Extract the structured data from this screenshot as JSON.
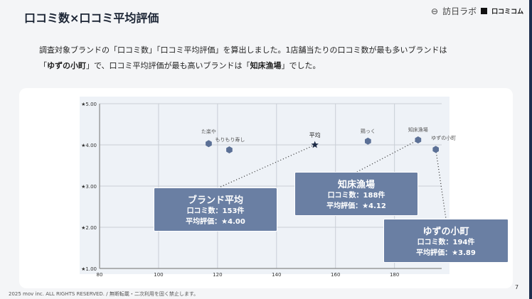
{
  "header": {
    "title": "口コミ数×口コミ平均評価",
    "logo_text": "訪日ラボ",
    "logo2_text": "口コミコム"
  },
  "description": {
    "line1": "調査対象ブランドの「口コミ数」「口コミ平均評価」を算出しました。1店舗当たりの口コミ数が最も多いブランドは",
    "line2_pre": "「",
    "line2_b1": "ゆずの小町",
    "line2_mid": "」で、口コミ平均評価が最も高いブランドは「",
    "line2_b2": "知床漁場",
    "line2_post": "」でした。"
  },
  "chart_data": {
    "type": "scatter",
    "xlim": [
      80,
      196
    ],
    "ylim": [
      1,
      5
    ],
    "grid": true,
    "x_ticks": [
      "80",
      "100",
      "120",
      "140",
      "160",
      "180"
    ],
    "x_tick_values": [
      80,
      100,
      120,
      140,
      160,
      180
    ],
    "y_ticks": [
      "★1.00",
      "★2.00",
      "★3.00",
      "★4.00",
      "★5.00"
    ],
    "y_tick_values": [
      1,
      2,
      3,
      4,
      5
    ],
    "points": [
      {
        "label": "た楽や",
        "x": 117,
        "y": 4.03,
        "marker": "hexagon"
      },
      {
        "label": "もりもり寿し",
        "x": 124,
        "y": 3.88,
        "marker": "hexagon"
      },
      {
        "label": "平均",
        "x": 153,
        "y": 4.0,
        "marker": "star"
      },
      {
        "label": "鶏っく",
        "x": 171,
        "y": 4.09,
        "marker": "hexagon"
      },
      {
        "label": "知床漁場",
        "x": 188,
        "y": 4.12,
        "marker": "hexagon"
      },
      {
        "label": "ゆずの小町",
        "x": 194,
        "y": 3.89,
        "marker": "hexagon"
      }
    ],
    "colors": {
      "marker": "#5b7096",
      "star": "#1c2a45",
      "callout": "#6a7fa3"
    }
  },
  "callouts": [
    {
      "title": "ブランド平均",
      "count": "口コミ数：153件",
      "rating": "平均評価：★4.00"
    },
    {
      "title": "知床漁場",
      "count": "口コミ数：188件",
      "rating": "平均評価：★4.12"
    },
    {
      "title": "ゆずの小町",
      "count": "口コミ数：194件",
      "rating": "平均評価：★3.89"
    }
  ],
  "footer": {
    "copyright": "2025 mov inc. ALL RIGHTS RESERVED. / 無断転載・二次利用を固く禁止します。",
    "page": "7"
  }
}
